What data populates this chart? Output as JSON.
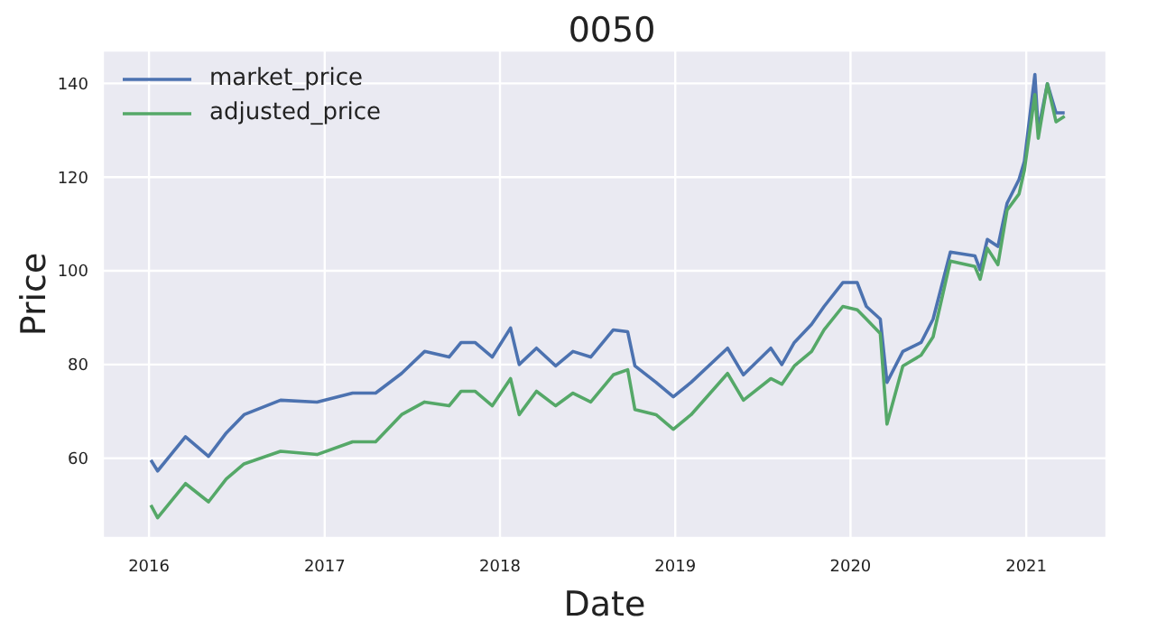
{
  "chart_data": {
    "type": "line",
    "title": "0050",
    "xlabel": "Date",
    "ylabel": "Price",
    "x": [
      "2016-01-05",
      "2016-01-19",
      "2016-03-17",
      "2016-05-04",
      "2016-06-10",
      "2016-07-17",
      "2016-10-01",
      "2016-12-16",
      "2017-02-28",
      "2017-04-17",
      "2017-06-10",
      "2017-07-28",
      "2017-09-17",
      "2017-10-12",
      "2017-11-10",
      "2017-12-16",
      "2018-01-23",
      "2018-02-10",
      "2018-03-18",
      "2018-04-27",
      "2018-06-02",
      "2018-07-09",
      "2018-08-25",
      "2018-09-24",
      "2018-10-09",
      "2018-11-22",
      "2018-12-28",
      "2019-02-03",
      "2019-04-20",
      "2019-05-23",
      "2019-07-19",
      "2019-08-11",
      "2019-09-06",
      "2019-10-12",
      "2019-11-07",
      "2019-12-16",
      "2020-01-15",
      "2020-02-03",
      "2020-03-03",
      "2020-03-17",
      "2020-04-19",
      "2020-05-27",
      "2020-06-21",
      "2020-07-27",
      "2020-09-16",
      "2020-09-27",
      "2020-10-12",
      "2020-11-03",
      "2020-11-22",
      "2020-12-17",
      "2020-12-28",
      "2021-01-19",
      "2021-01-26",
      "2021-02-14",
      "2021-03-04",
      "2021-03-22"
    ],
    "series": [
      {
        "name": "market_price",
        "color": "#4c72b0",
        "values": [
          59.6,
          57.3,
          64.6,
          60.4,
          65.4,
          69.3,
          72.4,
          72,
          73.9,
          73.9,
          78.1,
          82.8,
          81.6,
          84.7,
          84.7,
          81.6,
          87.8,
          80,
          83.5,
          79.7,
          82.8,
          81.6,
          87.4,
          87,
          79.7,
          76.2,
          73.1,
          76.2,
          83.5,
          77.8,
          83.5,
          80,
          84.7,
          88.6,
          92.4,
          97.5,
          97.5,
          92.4,
          89.7,
          76.2,
          82.8,
          84.7,
          89.7,
          104,
          103.2,
          100.2,
          106.7,
          105.2,
          114.4,
          119.5,
          123.3,
          141.9,
          129.9,
          139.9,
          133.7,
          133.7
        ]
      },
      {
        "name": "adjusted_price",
        "color": "#55a868",
        "values": [
          50,
          47.3,
          54.6,
          50.7,
          55.6,
          58.8,
          61.5,
          60.8,
          63.5,
          63.5,
          69.3,
          72,
          71.2,
          74.3,
          74.3,
          71.2,
          77,
          69.3,
          74.3,
          71.2,
          73.9,
          72,
          77.8,
          78.9,
          70.4,
          69.3,
          66.2,
          69.3,
          78.1,
          72.4,
          77,
          75.8,
          79.7,
          82.8,
          87.4,
          92.4,
          91.7,
          89.7,
          86.6,
          67.3,
          79.7,
          82,
          85.9,
          102.1,
          100.9,
          98.2,
          104.8,
          101.3,
          112.9,
          116.4,
          121.4,
          137.6,
          128.3,
          139.9,
          131.8,
          133
        ]
      }
    ],
    "xlim": [
      "2015-09-27",
      "2021-06-17"
    ],
    "xticks": [
      "2016",
      "2017",
      "2018",
      "2019",
      "2020",
      "2021"
    ],
    "ylim": [
      43,
      147
    ],
    "yticks": [
      60,
      80,
      100,
      120,
      140
    ],
    "grid": true,
    "legend": "top left",
    "marker": "none",
    "line_style": "solid"
  }
}
